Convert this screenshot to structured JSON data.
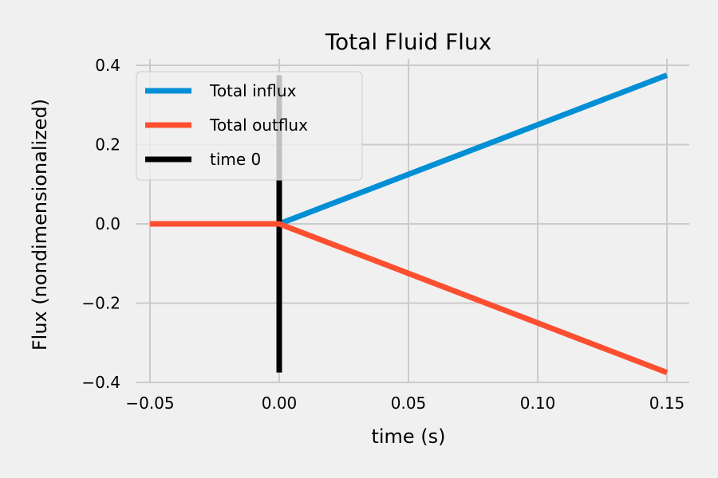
{
  "chart_data": {
    "type": "line",
    "title": "Total Fluid Flux",
    "xlabel": "time (s)",
    "ylabel": "Flux (nondimensionalized)",
    "xlim": [
      -0.05,
      0.15
    ],
    "ylim": [
      -0.4,
      0.4
    ],
    "xticks": [
      -0.05,
      0.0,
      0.05,
      0.1,
      0.15
    ],
    "xtick_labels": [
      "−0.05",
      "0.00",
      "0.05",
      "0.10",
      "0.15"
    ],
    "yticks": [
      -0.4,
      -0.2,
      0.0,
      0.2,
      0.4
    ],
    "ytick_labels": [
      "−0.4",
      "−0.2",
      "0.0",
      "0.2",
      "0.4"
    ],
    "grid": true,
    "legend_position": "top-left",
    "series": [
      {
        "name": "Total influx",
        "color": "#008fd5",
        "x": [
          -0.05,
          0.0,
          0.15
        ],
        "y": [
          0.0,
          0.0,
          0.375
        ]
      },
      {
        "name": "Total outflux",
        "color": "#fc4f30",
        "x": [
          -0.05,
          0.0,
          0.15
        ],
        "y": [
          0.0,
          0.0,
          -0.375
        ]
      },
      {
        "name": "time 0",
        "color": "#000000",
        "x": [
          0.0,
          0.0
        ],
        "y": [
          -0.375,
          0.375
        ]
      }
    ]
  }
}
